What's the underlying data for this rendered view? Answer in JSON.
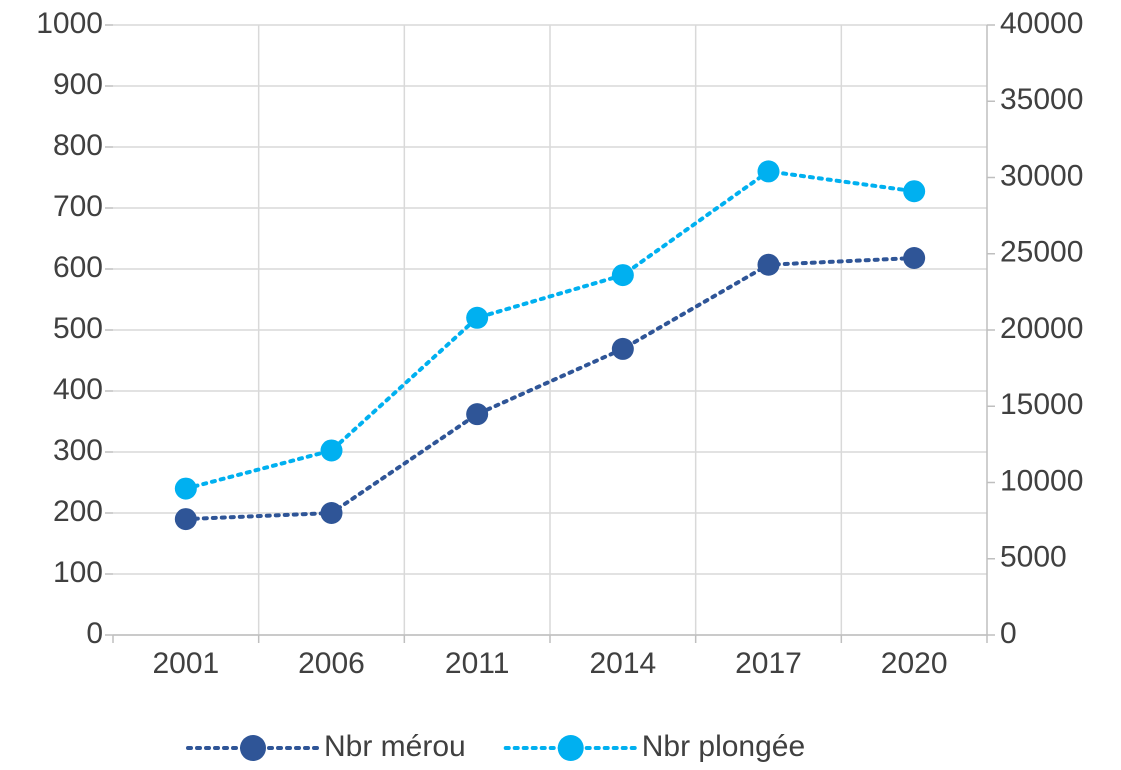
{
  "chart_data": {
    "type": "line",
    "categories": [
      "2001",
      "2006",
      "2011",
      "2014",
      "2017",
      "2020"
    ],
    "series": [
      {
        "name": "Nbr mérou",
        "color": "#2f5597",
        "values": [
          190,
          200,
          362,
          469,
          607,
          618
        ]
      },
      {
        "name": "Nbr plongée",
        "color": "#00b0f0",
        "axis": "y2",
        "values": [
          9600,
          12100,
          20800,
          23600,
          30400,
          29100
        ]
      }
    ],
    "ylim": [
      0,
      1000
    ],
    "yticks": [
      0,
      100,
      200,
      300,
      400,
      500,
      600,
      700,
      800,
      900,
      1000
    ],
    "y2lim": [
      0,
      40000
    ],
    "y2ticks": [
      0,
      5000,
      10000,
      15000,
      20000,
      25000,
      30000,
      35000,
      40000
    ],
    "grid": true,
    "legend": "bottom",
    "line_style": "dotted"
  }
}
